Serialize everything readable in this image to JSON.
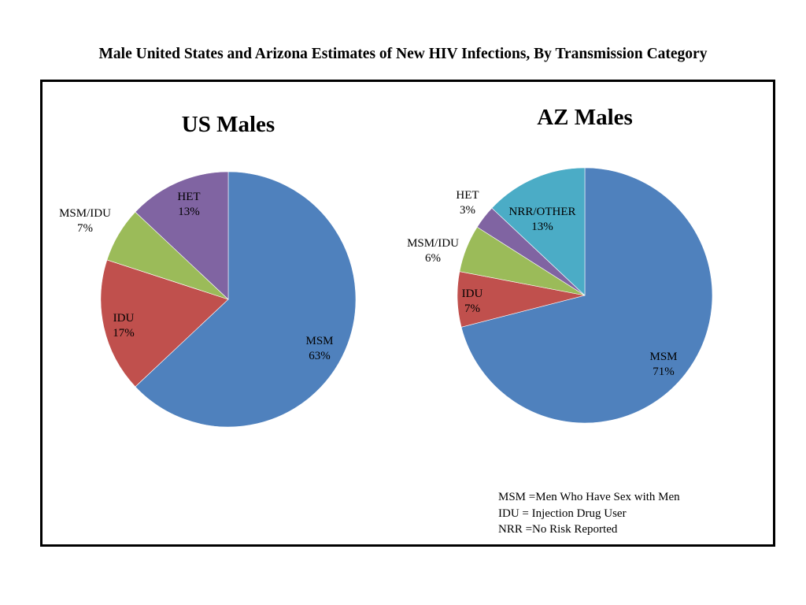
{
  "page_title": "Male United States and Arizona Estimates of New HIV Infections, By Transmission Category",
  "chart_data": [
    {
      "type": "pie",
      "title": "US Males",
      "start_angle_deg": 0,
      "direction": "clockwise",
      "slices": [
        {
          "name": "MSM",
          "value": 63,
          "label": "MSM",
          "pct_label": "63%",
          "color": "#4f81bd"
        },
        {
          "name": "IDU",
          "value": 17,
          "label": "IDU",
          "pct_label": "17%",
          "color": "#c0504d"
        },
        {
          "name": "MSM/IDU",
          "value": 7,
          "label": "MSM/IDU",
          "pct_label": "7%",
          "color": "#9bbb59"
        },
        {
          "name": "HET",
          "value": 13,
          "label": "HET",
          "pct_label": "13%",
          "color": "#8064a2"
        }
      ]
    },
    {
      "type": "pie",
      "title": "AZ Males",
      "start_angle_deg": 0,
      "direction": "clockwise",
      "slices": [
        {
          "name": "MSM",
          "value": 71,
          "label": "MSM",
          "pct_label": "71%",
          "color": "#4f81bd"
        },
        {
          "name": "IDU",
          "value": 7,
          "label": "IDU",
          "pct_label": "7%",
          "color": "#c0504d"
        },
        {
          "name": "MSM/IDU",
          "value": 6,
          "label": "MSM/IDU",
          "pct_label": "6%",
          "color": "#9bbb59"
        },
        {
          "name": "HET",
          "value": 3,
          "label": "HET",
          "pct_label": "3%",
          "color": "#8064a2"
        },
        {
          "name": "NRR/OTHER",
          "value": 13,
          "label": "NRR/OTHER",
          "pct_label": "13%",
          "color": "#4bacc6"
        }
      ]
    }
  ],
  "legend": [
    "MSM =Men Who Have Sex with Men",
    "IDU = Injection Drug User",
    "NRR =No Risk Reported"
  ]
}
